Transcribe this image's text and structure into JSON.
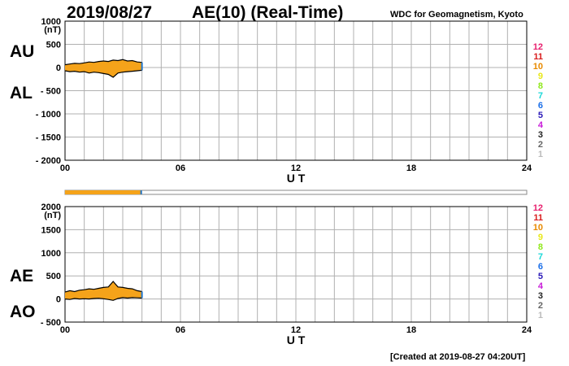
{
  "header": {
    "date": "2019/08/27",
    "title": "AE(10) (Real-Time)",
    "source": "WDC for Geomagnetism, Kyoto"
  },
  "footer": {
    "created": "[Created at 2019-08-27 04:20UT]"
  },
  "labels": {
    "au": "AU",
    "al": "AL",
    "ae": "AE",
    "ao": "AO",
    "unit": "(nT)"
  },
  "station_count_legend": [
    "12",
    "11",
    "10",
    "9",
    "8",
    "7",
    "6",
    "5",
    "4",
    "3",
    "2",
    "1"
  ],
  "colors": {
    "au_al_fill": "#f5a31a",
    "ae_ao_fill": "#f5a31a",
    "outline": "#000000",
    "bar_end": "#1f77d0",
    "grid": "#b0b0b0",
    "legend": [
      "#e8206e",
      "#d81b1b",
      "#e88a00",
      "#e8e81a",
      "#8fe81a",
      "#1ad8d8",
      "#1a6ee8",
      "#2b1ab8",
      "#c81ad8",
      "#222222",
      "#666666",
      "#bbbbbb"
    ]
  },
  "chart_data": [
    {
      "type": "area",
      "title": "",
      "xlabel": "U T",
      "ylabel": "(nT)",
      "xlim": [
        0,
        24
      ],
      "ylim": [
        -2000,
        1000
      ],
      "xticks": [
        "00",
        "06",
        "12",
        "18",
        "24"
      ],
      "yticks": [
        "1000",
        "500",
        "0",
        "- 500",
        "- 1000",
        "- 1500",
        "- 2000"
      ],
      "grid": true,
      "series": [
        {
          "name": "AU",
          "x": [
            0,
            0.25,
            0.5,
            0.75,
            1,
            1.25,
            1.5,
            1.75,
            2,
            2.25,
            2.5,
            2.75,
            3,
            3.25,
            3.5,
            3.75,
            4.0
          ],
          "values": [
            60,
            75,
            90,
            85,
            100,
            120,
            110,
            130,
            140,
            130,
            160,
            150,
            170,
            140,
            150,
            120,
            110
          ]
        },
        {
          "name": "AL",
          "x": [
            0,
            0.25,
            0.5,
            0.75,
            1,
            1.25,
            1.5,
            1.75,
            2,
            2.25,
            2.5,
            2.75,
            3,
            3.25,
            3.5,
            3.75,
            4.0
          ],
          "values": [
            -70,
            -90,
            -80,
            -100,
            -90,
            -120,
            -100,
            -110,
            -130,
            -150,
            -210,
            -120,
            -100,
            -90,
            -80,
            -70,
            -60
          ]
        }
      ]
    },
    {
      "type": "area",
      "title": "",
      "xlabel": "U T",
      "ylabel": "(nT)",
      "xlim": [
        0,
        24
      ],
      "ylim": [
        -500,
        2000
      ],
      "xticks": [
        "00",
        "06",
        "12",
        "18",
        "24"
      ],
      "yticks": [
        "2000",
        "1500",
        "1000",
        "500",
        "0",
        "- 500"
      ],
      "grid": true,
      "series": [
        {
          "name": "AE",
          "x": [
            0,
            0.25,
            0.5,
            0.75,
            1,
            1.25,
            1.5,
            1.75,
            2,
            2.25,
            2.5,
            2.75,
            3,
            3.25,
            3.5,
            3.75,
            4.0
          ],
          "values": [
            150,
            180,
            160,
            190,
            200,
            220,
            210,
            230,
            250,
            260,
            380,
            260,
            250,
            230,
            220,
            180,
            160
          ]
        },
        {
          "name": "AO",
          "x": [
            0,
            0.25,
            0.5,
            0.75,
            1,
            1.25,
            1.5,
            1.75,
            2,
            2.25,
            2.5,
            2.75,
            3,
            3.25,
            3.5,
            3.75,
            4.0
          ],
          "values": [
            0,
            -10,
            10,
            0,
            5,
            0,
            10,
            15,
            5,
            -10,
            -30,
            10,
            30,
            20,
            30,
            25,
            20
          ]
        }
      ]
    }
  ],
  "data_coverage": {
    "start": 0,
    "end": 4.0,
    "max": 24
  }
}
